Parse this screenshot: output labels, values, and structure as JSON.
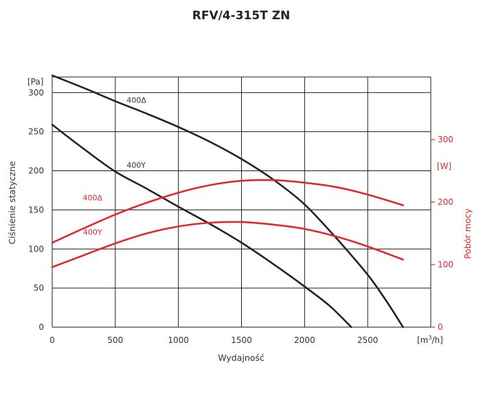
{
  "chart_data": {
    "type": "line",
    "title": "RFV/4-315T ZN",
    "xlabel": "Wydajność",
    "x_unit_prefix": "[m",
    "x_unit_sup": "3",
    "x_unit_suffix": "/h]",
    "ylabel": "Ciśnienie statyczne",
    "y_unit": "[Pa]",
    "y2label": "Pobór mocy",
    "y2_unit": "[W]",
    "xlim": [
      0,
      3000
    ],
    "ylim": [
      0,
      320
    ],
    "y2lim": [
      0,
      400
    ],
    "x_ticks": [
      "0",
      "500",
      "1000",
      "1500",
      "2000",
      "2500"
    ],
    "y_ticks": [
      "0",
      "50",
      "100",
      "150",
      "200",
      "250",
      "300"
    ],
    "y2_ticks": [
      "0",
      "100",
      "200",
      "300"
    ],
    "grid": true,
    "colors": {
      "pressure": "#222222",
      "power": "#e0282e"
    },
    "series": [
      {
        "name": "400Δ",
        "axis": "pressure",
        "label_at": [
          590,
          287
        ],
        "points": [
          [
            0,
            322
          ],
          [
            250,
            306
          ],
          [
            500,
            289
          ],
          [
            750,
            273
          ],
          [
            1000,
            256
          ],
          [
            1250,
            237
          ],
          [
            1500,
            215
          ],
          [
            1750,
            189
          ],
          [
            2000,
            157
          ],
          [
            2250,
            114
          ],
          [
            2500,
            67
          ],
          [
            2650,
            33
          ],
          [
            2780,
            0
          ]
        ]
      },
      {
        "name": "400Y",
        "axis": "pressure",
        "label_at": [
          590,
          204
        ],
        "points": [
          [
            0,
            259
          ],
          [
            250,
            228
          ],
          [
            500,
            199
          ],
          [
            750,
            177
          ],
          [
            1000,
            154
          ],
          [
            1250,
            132
          ],
          [
            1500,
            108
          ],
          [
            1750,
            81
          ],
          [
            2000,
            52
          ],
          [
            2200,
            27
          ],
          [
            2370,
            0
          ]
        ]
      },
      {
        "name": "400Δ",
        "axis": "power",
        "label_at": [
          320,
          203
        ],
        "points": [
          [
            0,
            135
          ],
          [
            250,
            158
          ],
          [
            500,
            180
          ],
          [
            750,
            199
          ],
          [
            1000,
            215
          ],
          [
            1250,
            227
          ],
          [
            1500,
            234
          ],
          [
            1750,
            235
          ],
          [
            2000,
            231
          ],
          [
            2250,
            224
          ],
          [
            2500,
            212
          ],
          [
            2780,
            195
          ]
        ]
      },
      {
        "name": "400Y",
        "axis": "power",
        "label_at": [
          320,
          148
        ],
        "points": [
          [
            0,
            96
          ],
          [
            250,
            115
          ],
          [
            500,
            134
          ],
          [
            750,
            150
          ],
          [
            1000,
            161
          ],
          [
            1250,
            167
          ],
          [
            1500,
            168
          ],
          [
            1750,
            164
          ],
          [
            2000,
            157
          ],
          [
            2250,
            145
          ],
          [
            2500,
            129
          ],
          [
            2780,
            108
          ]
        ]
      }
    ]
  }
}
